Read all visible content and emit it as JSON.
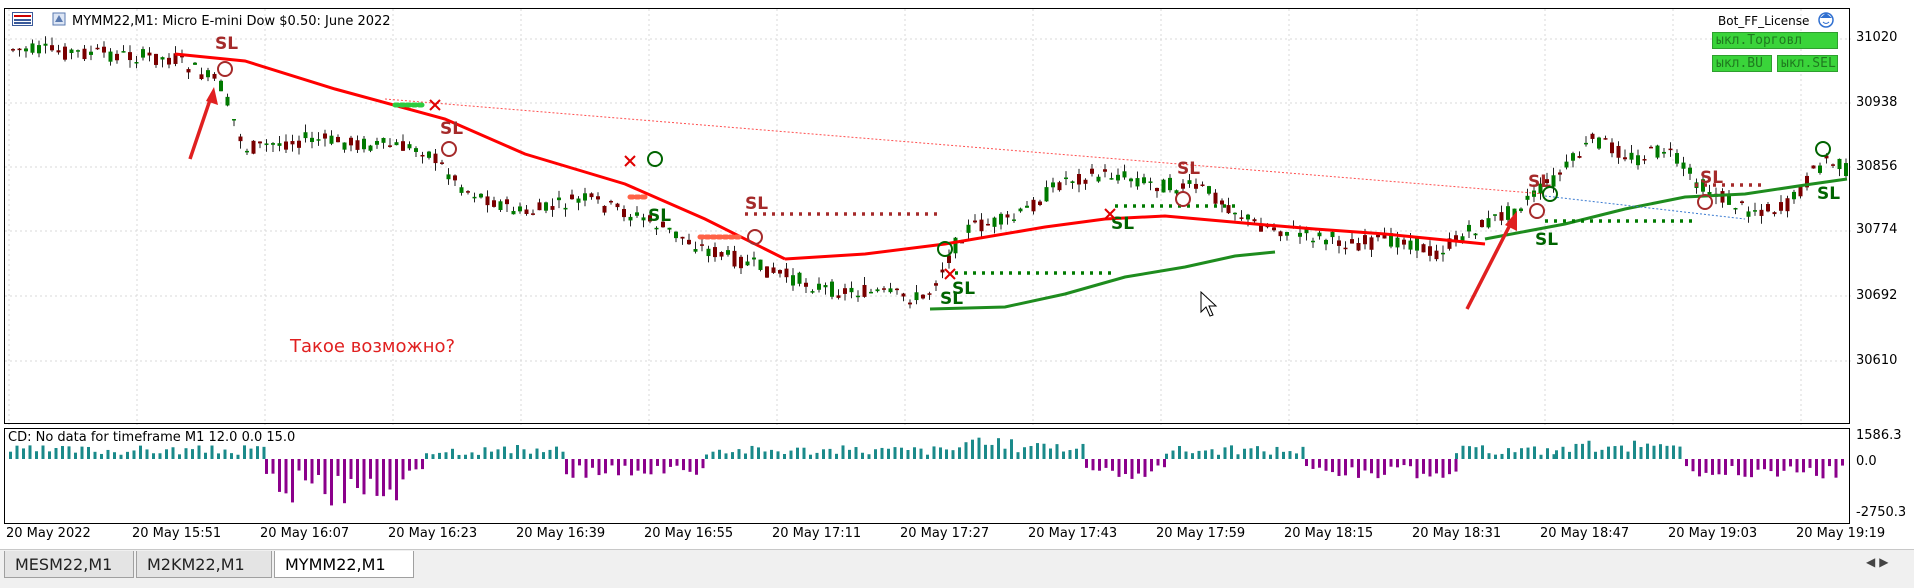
{
  "chart": {
    "title": "MYMM22,M1:  Micro E-mini Dow $0.50: June 2022",
    "ea_name": "Bot_FF_License",
    "ea_buttons": [
      "ыкл.Торговл",
      "ыкл.BU",
      "ыкл.SEL"
    ],
    "annotation": "Такое возможно?",
    "sl_label": "SL",
    "price_axis": [
      "31020",
      "30938",
      "30856",
      "30774",
      "30692",
      "30610"
    ]
  },
  "indicator": {
    "header": "CD: No data for timeframe M1 12.0 0.0 15.0",
    "axis": [
      "1586.3",
      "0.0",
      "-2750.3"
    ]
  },
  "time_axis": [
    "20 May 2022",
    "20 May 15:51",
    "20 May 16:07",
    "20 May 16:23",
    "20 May 16:39",
    "20 May 16:55",
    "20 May 17:11",
    "20 May 17:27",
    "20 May 17:43",
    "20 May 17:59",
    "20 May 18:15",
    "20 May 18:31",
    "20 May 18:47",
    "20 May 19:03",
    "20 May 19:19"
  ],
  "tabs": [
    {
      "label": "MESM22,M1",
      "active": false
    },
    {
      "label": "M2KM22,M1",
      "active": false
    },
    {
      "label": "MYMM22,M1",
      "active": true
    }
  ],
  "colors": {
    "bull": "#007a00",
    "bear": "#7a0000",
    "ma_red": "#ff0000",
    "ma_green": "#1e8c1e",
    "hist_pos": "#1a8a8a",
    "hist_neg": "#8b008b",
    "sl": "#a52a2a"
  },
  "icons": [
    "chart-window-icon",
    "expert-hat-icon",
    "scroll-left-icon",
    "scroll-right-icon"
  ]
}
